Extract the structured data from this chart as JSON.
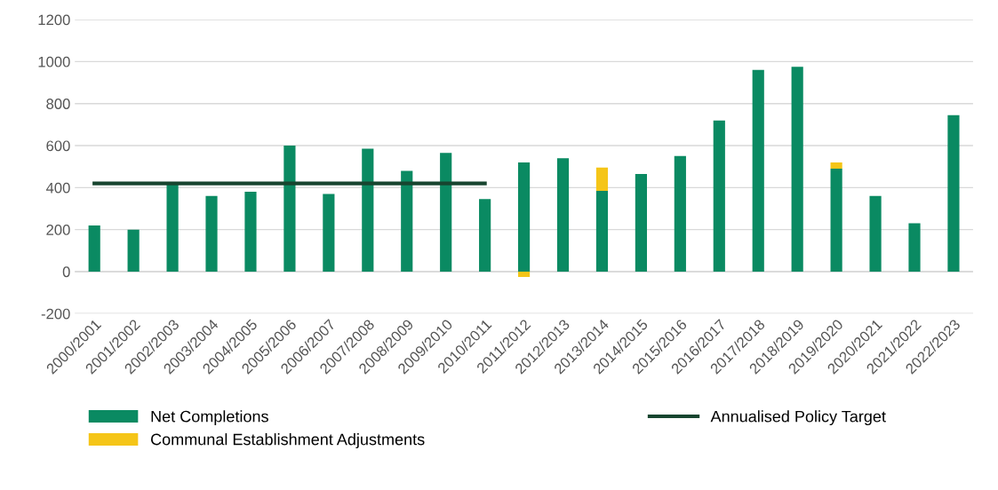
{
  "chart_data": {
    "type": "bar",
    "stacked": true,
    "categories": [
      "2000/2001",
      "2001/2002",
      "2002/2003",
      "2003/2004",
      "2004/2005",
      "2005/2006",
      "2006/2007",
      "2007/2008",
      "2008/2009",
      "2009/2010",
      "2010/2011",
      "2011/2012",
      "2012/2013",
      "2013/2014",
      "2014/2015",
      "2015/2016",
      "2016/2017",
      "2017/2018",
      "2018/2019",
      "2019/2020",
      "2020/2021",
      "2021/2022",
      "2022/2023"
    ],
    "series": [
      {
        "name": "Net Completions",
        "color": "#0a8a62",
        "values": [
          220,
          200,
          425,
          360,
          380,
          600,
          370,
          585,
          480,
          565,
          345,
          520,
          540,
          385,
          465,
          550,
          720,
          960,
          975,
          490,
          360,
          230,
          745
        ]
      },
      {
        "name": "Communal Establishment Adjustments",
        "color": "#f5c518",
        "values": [
          null,
          null,
          null,
          null,
          null,
          null,
          null,
          null,
          null,
          null,
          null,
          -25,
          null,
          110,
          null,
          null,
          null,
          null,
          null,
          30,
          null,
          null,
          null
        ]
      },
      {
        "name": "Annualised Policy Target",
        "type": "line",
        "color": "#17452f",
        "values": [
          420,
          420,
          420,
          420,
          420,
          420,
          420,
          420,
          420,
          420,
          420,
          null,
          null,
          null,
          null,
          null,
          null,
          null,
          null,
          null,
          null,
          null,
          null
        ]
      }
    ],
    "ylim": [
      -200,
      1200
    ],
    "yticks": [
      -200,
      0,
      200,
      400,
      600,
      800,
      1000,
      1200
    ],
    "grid": "y",
    "legend": "bottom"
  }
}
